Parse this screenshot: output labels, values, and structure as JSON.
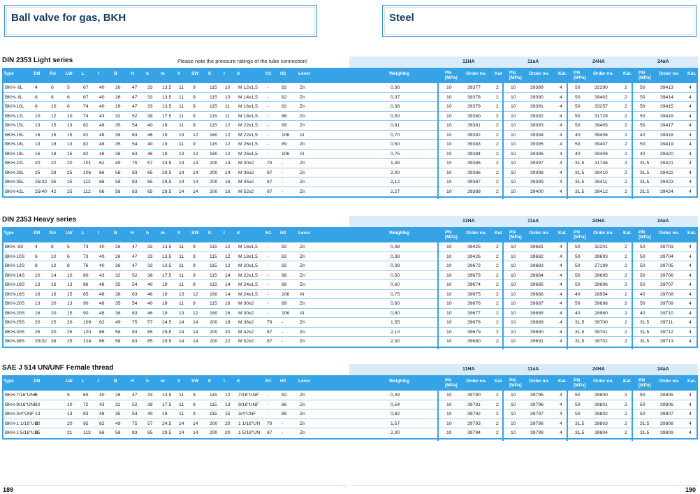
{
  "header": {
    "left_title": "Ball valve for gas, BKH",
    "right_title": "Steel"
  },
  "pages": {
    "left": "189",
    "right": "190"
  },
  "groups": [
    "11HA",
    "11aA",
    "24HA",
    "24aA"
  ],
  "columns": [
    {
      "key": "type",
      "label": "Type"
    },
    {
      "key": "dn",
      "label": "DN"
    },
    {
      "key": "ra",
      "label": "RA"
    },
    {
      "key": "lw",
      "label": "LW"
    },
    {
      "key": "L",
      "label": "L"
    },
    {
      "key": "l",
      "label": "l"
    },
    {
      "key": "B",
      "label": "B"
    },
    {
      "key": "H",
      "label": "H"
    },
    {
      "key": "h",
      "label": "h"
    },
    {
      "key": "m",
      "label": "m"
    },
    {
      "key": "V",
      "label": "V"
    },
    {
      "key": "SW",
      "label": "SW"
    },
    {
      "key": "K",
      "label": "K"
    },
    {
      "key": "i",
      "label": "I"
    },
    {
      "key": "d",
      "label": "d"
    },
    {
      "key": "H1",
      "label": "H1"
    },
    {
      "key": "H2",
      "label": "H2"
    },
    {
      "key": "lever",
      "label": "Lever"
    },
    {
      "key": "weight",
      "label": "Weightkg"
    },
    {
      "key": "pn1",
      "label": "PN [MPa]"
    },
    {
      "key": "o1",
      "label": "Order no."
    },
    {
      "key": "k1",
      "label": "Kat."
    },
    {
      "key": "pn2",
      "label": "PN [MPa]"
    },
    {
      "key": "o2",
      "label": "Order no."
    },
    {
      "key": "k2",
      "label": "Kat."
    },
    {
      "key": "pn3",
      "label": "PN [MPa]"
    },
    {
      "key": "o3",
      "label": "Order no."
    },
    {
      "key": "k3",
      "label": "Kat."
    },
    {
      "key": "pn4",
      "label": "PN [MPa]"
    },
    {
      "key": "o4",
      "label": "Order no."
    },
    {
      "key": "k4",
      "label": "Kat."
    }
  ],
  "sections": [
    {
      "title": "DIN 2353 Light series",
      "note": "Please note the pressure ratings of the tube connection!",
      "has_ra": true,
      "rows": [
        [
          "BKH- 6L",
          "4",
          "6",
          "5",
          "67",
          "40",
          "26",
          "47",
          "33",
          "13,5",
          "11",
          "9",
          "115",
          "10",
          "M 12x1,5",
          "-",
          "82",
          "Zn",
          "0,36",
          "10",
          "39377",
          "2",
          "10",
          "39389",
          "4",
          "50",
          "32290",
          "2",
          "50",
          "39413",
          "4"
        ],
        [
          "BKH- 8L",
          "6",
          "8",
          "6",
          "67",
          "40",
          "26",
          "47",
          "33",
          "13,5",
          "11",
          "9",
          "115",
          "10",
          "M 14x1,5",
          "-",
          "82",
          "Zn",
          "0,37",
          "10",
          "39378",
          "2",
          "10",
          "39390",
          "4",
          "50",
          "39402",
          "2",
          "50",
          "39414",
          "4"
        ],
        [
          "BKH-10L",
          "8",
          "10",
          "8",
          "74",
          "40",
          "26",
          "47",
          "33",
          "13,5",
          "11",
          "9",
          "115",
          "11",
          "M 16x1,5",
          "-",
          "82",
          "Zn",
          "0,38",
          "10",
          "39379",
          "2",
          "10",
          "39391",
          "4",
          "50",
          "33257",
          "2",
          "50",
          "39415",
          "4"
        ],
        [
          "BKH-12L",
          "10",
          "12",
          "10",
          "74",
          "43",
          "32",
          "52",
          "38",
          "17,5",
          "11",
          "9",
          "115",
          "11",
          "M 18x1,5",
          "-",
          "86",
          "Zn",
          "0,50",
          "10",
          "39380",
          "2",
          "10",
          "39392",
          "4",
          "50",
          "31729",
          "2",
          "50",
          "39416",
          "4"
        ],
        [
          "BKH-15L",
          "13",
          "15",
          "13",
          "82",
          "48",
          "35",
          "54",
          "40",
          "19",
          "11",
          "9",
          "115",
          "12",
          "M 22x1,5",
          "-",
          "89",
          "Zn",
          "0,61",
          "10",
          "39381",
          "2",
          "10",
          "39393",
          "4",
          "50",
          "39405",
          "2",
          "50",
          "39417",
          "4"
        ],
        [
          "BKH-15L",
          "16",
          "15",
          "15",
          "82",
          "48",
          "38",
          "63",
          "46",
          "19",
          "13",
          "12",
          "160",
          "12",
          "M 22x1,5",
          "-",
          "106",
          "Al",
          "0,70",
          "10",
          "39382",
          "2",
          "10",
          "39394",
          "4",
          "40",
          "39406",
          "2",
          "40",
          "39418",
          "4"
        ],
        [
          "BKH-18L",
          "13",
          "18",
          "13",
          "82",
          "48",
          "35",
          "54",
          "40",
          "19",
          "11",
          "9",
          "115",
          "12",
          "M 26x1,5",
          "-",
          "89",
          "Zn",
          "0,60",
          "10",
          "39383",
          "2",
          "10",
          "39395",
          "4",
          "50",
          "39407",
          "2",
          "50",
          "39419",
          "4"
        ],
        [
          "BKH-18L",
          "16",
          "18",
          "15",
          "82",
          "48",
          "38",
          "63",
          "46",
          "19",
          "13",
          "12",
          "160",
          "12",
          "M 26x1,5",
          "-",
          "106",
          "Al",
          "0,75",
          "10",
          "39384",
          "2",
          "10",
          "39396",
          "4",
          "40",
          "39408",
          "2",
          "40",
          "39420",
          "4"
        ],
        [
          "BKH-22L",
          "20",
          "22",
          "20",
          "101",
          "62",
          "49",
          "75",
          "57",
          "24,5",
          "14",
          "14",
          "200",
          "14",
          "M 30x2",
          "79",
          "-",
          "Zn",
          "1,49",
          "10",
          "39385",
          "2",
          "10",
          "39397",
          "4",
          "31,5",
          "31746",
          "2",
          "31,5",
          "39421",
          "4"
        ],
        [
          "BKH-28L",
          "25",
          "28",
          "25",
          "106",
          "66",
          "58",
          "83",
          "65",
          "29,5",
          "14",
          "14",
          "200",
          "14",
          "M 36x2",
          "87",
          "-",
          "Zn",
          "2,00",
          "10",
          "39386",
          "2",
          "10",
          "39398",
          "4",
          "31,5",
          "39410",
          "2",
          "31,5",
          "39422",
          "4"
        ],
        [
          "BKH-35L",
          "25/32",
          "35",
          "25",
          "112",
          "66",
          "58",
          "83",
          "65",
          "29,5",
          "14",
          "14",
          "200",
          "16",
          "M 45x2",
          "87",
          "-",
          "Zn",
          "2,12",
          "10",
          "39387",
          "2",
          "10",
          "39399",
          "4",
          "31,5",
          "39411",
          "2",
          "31,5",
          "39423",
          "4"
        ],
        [
          "BKH-42L",
          "25/40",
          "42",
          "25",
          "112",
          "66",
          "58",
          "83",
          "65",
          "29,5",
          "14",
          "14",
          "200",
          "16",
          "M 52x2",
          "87",
          "-",
          "Zn",
          "2,27",
          "10",
          "39388",
          "2",
          "10",
          "39400",
          "4",
          "31,5",
          "39412",
          "2",
          "31,5",
          "39424",
          "4"
        ]
      ]
    },
    {
      "title": "DIN 2353 Heavy series",
      "note": "",
      "has_ra": true,
      "rows": [
        [
          "BKH- 6S",
          "4",
          "8",
          "5",
          "73",
          "40",
          "26",
          "47",
          "33",
          "13,5",
          "11",
          "9",
          "115",
          "12",
          "M 16x1,5",
          "-",
          "82",
          "Zn",
          "0,38",
          "10",
          "39425",
          "2",
          "10",
          "39681",
          "4",
          "50",
          "32201",
          "2",
          "50",
          "39703",
          "4"
        ],
        [
          "BKH-10S",
          "6",
          "10",
          "6",
          "73",
          "40",
          "26",
          "47",
          "33",
          "13,5",
          "11",
          "9",
          "115",
          "12",
          "M 18x1,5",
          "-",
          "82",
          "Zn",
          "0,39",
          "10",
          "39426",
          "2",
          "10",
          "39682",
          "4",
          "50",
          "39693",
          "2",
          "50",
          "39704",
          "4"
        ],
        [
          "BKH-12S",
          "8",
          "12",
          "8",
          "76",
          "40",
          "26",
          "47",
          "33",
          "13,5",
          "11",
          "9",
          "115",
          "12",
          "M 20x1,5",
          "-",
          "82",
          "Zn",
          "0,39",
          "10",
          "39672",
          "2",
          "10",
          "39683",
          "4",
          "50",
          "27199",
          "2",
          "50",
          "39705",
          "4"
        ],
        [
          "BKH-14S",
          "10",
          "14",
          "10",
          "80",
          "43",
          "32",
          "52",
          "38",
          "17,5",
          "11",
          "9",
          "115",
          "14",
          "M 22x1,5",
          "-",
          "86",
          "Zn",
          "0,50",
          "10",
          "39673",
          "2",
          "10",
          "39684",
          "4",
          "50",
          "39695",
          "2",
          "50",
          "39706",
          "4"
        ],
        [
          "BKH-16S",
          "13",
          "16",
          "13",
          "86",
          "48",
          "35",
          "54",
          "40",
          "19",
          "11",
          "9",
          "115",
          "14",
          "M 24x1,5",
          "-",
          "89",
          "Zn",
          "0,60",
          "10",
          "39674",
          "2",
          "10",
          "39685",
          "4",
          "50",
          "39696",
          "2",
          "50",
          "39707",
          "4"
        ],
        [
          "BKH-16S",
          "16",
          "16",
          "15",
          "85",
          "48",
          "38",
          "63",
          "46",
          "19",
          "13",
          "12",
          "160",
          "14",
          "M 24x1,5",
          "-",
          "106",
          "Al",
          "0,75",
          "10",
          "39675",
          "2",
          "10",
          "39686",
          "4",
          "40",
          "28954",
          "2",
          "40",
          "39708",
          "4"
        ],
        [
          "BKH-20S",
          "13",
          "20",
          "13",
          "90",
          "48",
          "35",
          "54",
          "40",
          "19",
          "11",
          "9",
          "115",
          "16",
          "M 30x2",
          "-",
          "89",
          "Zn",
          "0,60",
          "10",
          "39676",
          "2",
          "10",
          "39687",
          "4",
          "50",
          "39698",
          "2",
          "50",
          "39709",
          "4"
        ],
        [
          "BKH-20S",
          "16",
          "20",
          "15",
          "90",
          "48",
          "38",
          "63",
          "46",
          "19",
          "13",
          "12",
          "160",
          "16",
          "M 30x2",
          "-",
          "106",
          "Al",
          "0,80",
          "10",
          "39677",
          "2",
          "10",
          "39688",
          "4",
          "40",
          "28960",
          "2",
          "40",
          "39710",
          "4"
        ],
        [
          "BKH-25S",
          "20",
          "25",
          "20",
          "109",
          "62",
          "49",
          "75",
          "57",
          "24,5",
          "14",
          "14",
          "200",
          "18",
          "M 36x2",
          "79",
          "-",
          "Zn",
          "1,55",
          "10",
          "39678",
          "2",
          "10",
          "39689",
          "4",
          "31,5",
          "39700",
          "2",
          "31,5",
          "39711",
          "4"
        ],
        [
          "BKH-30S",
          "25",
          "30",
          "25",
          "120",
          "66",
          "58",
          "83",
          "65",
          "29,5",
          "14",
          "14",
          "200",
          "20",
          "M 42x2",
          "87",
          "-",
          "Zn",
          "2,10",
          "10",
          "39679",
          "2",
          "10",
          "39690",
          "4",
          "31,5",
          "39701",
          "2",
          "31,5",
          "39712",
          "4"
        ],
        [
          "BKH-38S",
          "25/32",
          "38",
          "25",
          "124",
          "66",
          "58",
          "83",
          "65",
          "29,5",
          "14",
          "14",
          "200",
          "22",
          "M 52x2",
          "87",
          "-",
          "Zn",
          "2,30",
          "10",
          "39680",
          "2",
          "10",
          "39691",
          "4",
          "31,5",
          "39702",
          "2",
          "31,5",
          "39713",
          "4"
        ]
      ]
    },
    {
      "title": "SAE J 514 UN/UNF Female thread",
      "note": "",
      "has_ra": false,
      "rows": [
        [
          "BKH-7/16\"UNF",
          "6",
          "",
          "5",
          "69",
          "40",
          "26",
          "47",
          "33",
          "13,5",
          "11",
          "9",
          "115",
          "12",
          "7/16\"UNF",
          "-",
          "82",
          "Zn",
          "0,39",
          "10",
          "39790",
          "2",
          "10",
          "39795",
          "4",
          "50",
          "39800",
          "2",
          "50",
          "39805",
          "4"
        ],
        [
          "BKH-9/16\"UNF",
          "10",
          "",
          "10",
          "72",
          "43",
          "32",
          "52",
          "38",
          "17,5",
          "11",
          "9",
          "115",
          "13",
          "9/16\"UNF",
          "-",
          "86",
          "Zn",
          "0,54",
          "10",
          "39791",
          "2",
          "10",
          "39796",
          "4",
          "50",
          "39801",
          "2",
          "50",
          "39806",
          "4"
        ],
        [
          "BKH-3/4\"UNF",
          "13",
          "",
          "13",
          "83",
          "48",
          "35",
          "54",
          "40",
          "19",
          "11",
          "9",
          "115",
          "15",
          "3/4\"UNF",
          "-",
          "89",
          "Zn",
          "0,82",
          "10",
          "39792",
          "2",
          "10",
          "39797",
          "4",
          "50",
          "39802",
          "2",
          "50",
          "39807",
          "4"
        ],
        [
          "BKH-1 1/16\"UN",
          "20",
          "",
          "20",
          "95",
          "62",
          "49",
          "75",
          "57",
          "24,5",
          "14",
          "14",
          "200",
          "20",
          "1 1/16\"UN",
          "79",
          "-",
          "Zn",
          "1,57",
          "10",
          "39793",
          "2",
          "10",
          "39798",
          "4",
          "31,5",
          "39803",
          "2",
          "31,5",
          "39808",
          "4"
        ],
        [
          "BKH-1 5/16\"UN",
          "25",
          "",
          "21",
          "113",
          "66",
          "58",
          "83",
          "65",
          "29,5",
          "14",
          "14",
          "200",
          "20",
          "1 5/16\"UN",
          "87",
          "-",
          "Zn",
          "2,30",
          "10",
          "39794",
          "2",
          "10",
          "39799",
          "4",
          "31,5",
          "39804",
          "2",
          "31,5",
          "39809",
          "4"
        ]
      ]
    }
  ]
}
